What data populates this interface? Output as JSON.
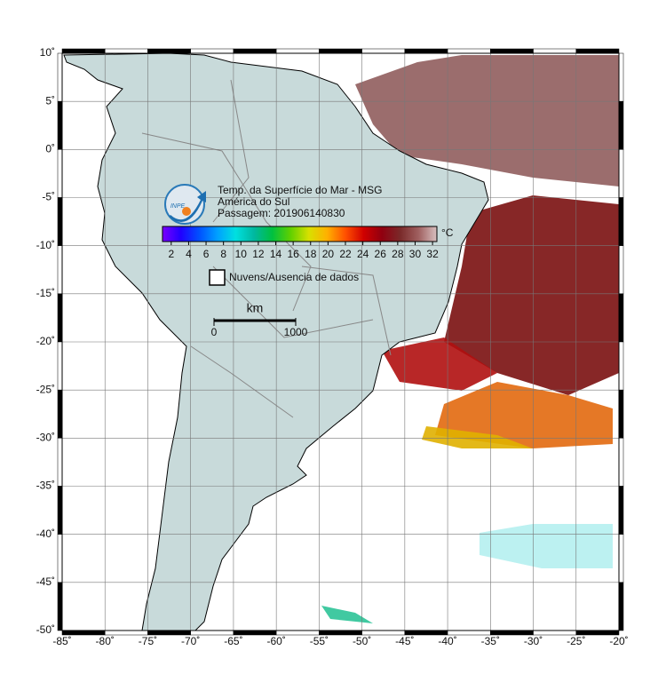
{
  "map": {
    "xlim": [
      -85,
      -20
    ],
    "ylim": [
      -50,
      10
    ],
    "xticks": [
      {
        "value": -85,
        "label": "-85˚"
      },
      {
        "value": -80,
        "label": "-80˚"
      },
      {
        "value": -75,
        "label": "-75˚"
      },
      {
        "value": -70,
        "label": "-70˚"
      },
      {
        "value": -65,
        "label": "-65˚"
      },
      {
        "value": -60,
        "label": "-60˚"
      },
      {
        "value": -55,
        "label": "-55˚"
      },
      {
        "value": -50,
        "label": "-50˚"
      },
      {
        "value": -45,
        "label": "-45˚"
      },
      {
        "value": -40,
        "label": "-40˚"
      },
      {
        "value": -35,
        "label": "-35˚"
      },
      {
        "value": -30,
        "label": "-30˚"
      },
      {
        "value": -25,
        "label": "-25˚"
      },
      {
        "value": -20,
        "label": "-20˚"
      }
    ],
    "yticks": [
      {
        "value": 10,
        "label": "10˚"
      },
      {
        "value": 5,
        "label": "5˚"
      },
      {
        "value": 0,
        "label": "0˚"
      },
      {
        "value": -5,
        "label": "-5˚"
      },
      {
        "value": -10,
        "label": "-10˚"
      },
      {
        "value": -15,
        "label": "-15˚"
      },
      {
        "value": -20,
        "label": "-20˚"
      },
      {
        "value": -25,
        "label": "-25˚"
      },
      {
        "value": -30,
        "label": "-30˚"
      },
      {
        "value": -35,
        "label": "-35˚"
      },
      {
        "value": -40,
        "label": "-40˚"
      },
      {
        "value": -45,
        "label": "-45˚"
      },
      {
        "value": -50,
        "label": "-50˚"
      }
    ],
    "grid": true
  },
  "logo": "INPE",
  "title_lines": [
    "Temp. da Superfície do Mar - MSG",
    "América do Sul",
    "Passagem: 201906140830"
  ],
  "colorbar": {
    "lim": [
      1,
      32.5
    ],
    "ticks": [
      2,
      4,
      6,
      8,
      10,
      12,
      14,
      16,
      18,
      20,
      22,
      24,
      26,
      28,
      30,
      32
    ],
    "colors": [
      "#7a00ff",
      "#2000ff",
      "#0050ff",
      "#00a0ff",
      "#00e0e0",
      "#00b8a0",
      "#00c040",
      "#60d000",
      "#d8e000",
      "#ffb000",
      "#ff5000",
      "#d00000",
      "#900010",
      "#7a2a2a",
      "#a06060",
      "#d8c0c0"
    ],
    "unit": "°C"
  },
  "legend": "Nuvens/Ausencia de dados",
  "scale_bar": {
    "unit": "km",
    "ticks": [
      0,
      1000
    ]
  }
}
